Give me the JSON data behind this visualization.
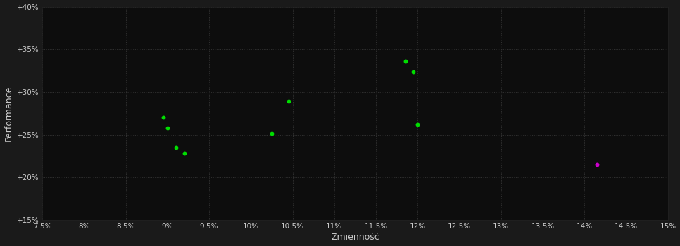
{
  "background_color": "#1a1a1a",
  "plot_bg_color": "#0d0d0d",
  "grid_color": "#333333",
  "text_color": "#cccccc",
  "xlabel": "Zmienność",
  "ylabel": "Performance",
  "xlim": [
    0.075,
    0.15
  ],
  "ylim": [
    0.15,
    0.4
  ],
  "xticks": [
    0.075,
    0.08,
    0.085,
    0.09,
    0.095,
    0.1,
    0.105,
    0.11,
    0.115,
    0.12,
    0.125,
    0.13,
    0.135,
    0.14,
    0.145,
    0.15
  ],
  "yticks": [
    0.15,
    0.2,
    0.25,
    0.3,
    0.35,
    0.4
  ],
  "green_points": [
    [
      0.0895,
      0.27
    ],
    [
      0.09,
      0.258
    ],
    [
      0.091,
      0.235
    ],
    [
      0.092,
      0.228
    ],
    [
      0.1025,
      0.251
    ],
    [
      0.1045,
      0.289
    ],
    [
      0.1185,
      0.336
    ],
    [
      0.1195,
      0.324
    ],
    [
      0.12,
      0.262
    ]
  ],
  "purple_points": [
    [
      0.1415,
      0.215
    ]
  ],
  "green_color": "#00dd00",
  "purple_color": "#cc00cc",
  "point_size": 18
}
